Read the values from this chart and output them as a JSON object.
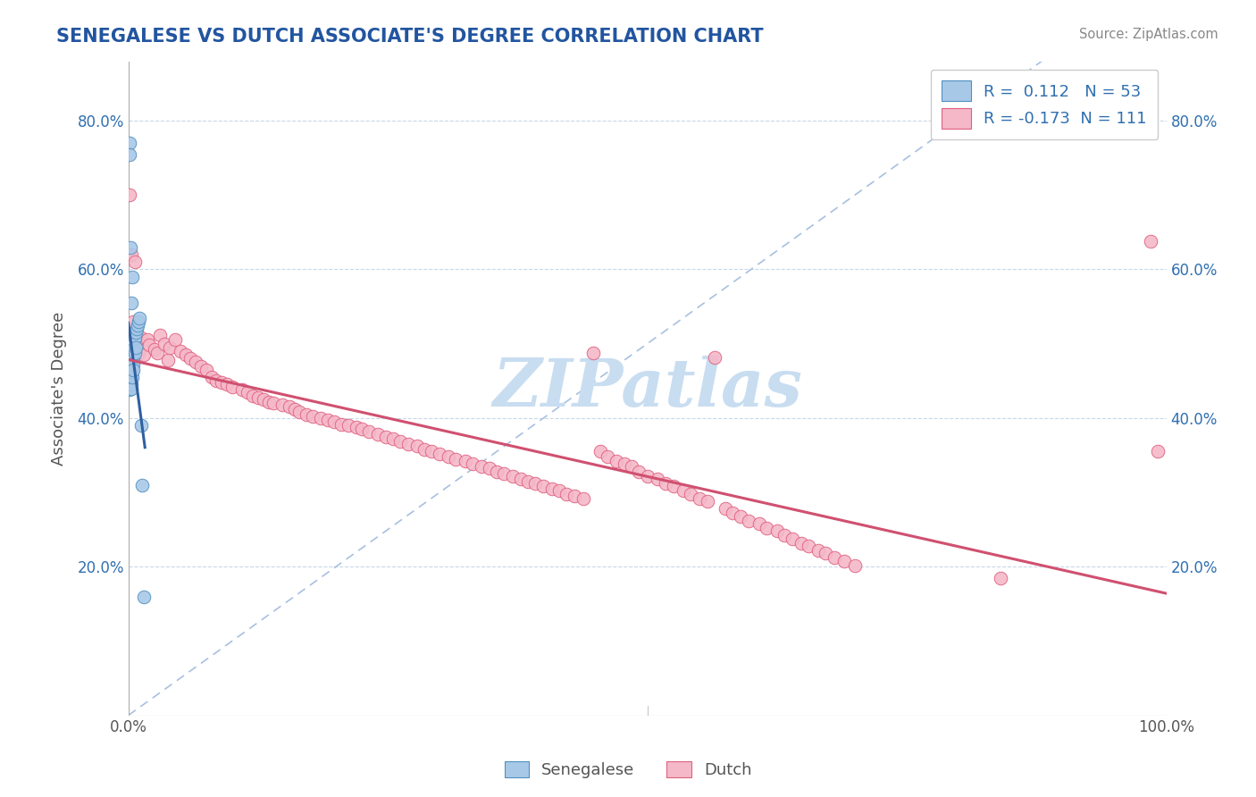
{
  "title": "SENEGALESE VS DUTCH ASSOCIATE'S DEGREE CORRELATION CHART",
  "source_text": "Source: ZipAtlas.com",
  "ylabel": "Associate's Degree",
  "watermark": "ZIPatlas",
  "xlim": [
    0.0,
    1.0
  ],
  "ylim": [
    0.0,
    0.88
  ],
  "blue_R": 0.112,
  "blue_N": 53,
  "pink_R": -0.173,
  "pink_N": 111,
  "blue_color": "#a8c8e8",
  "pink_color": "#f4b8c8",
  "blue_edge_color": "#5090c0",
  "pink_edge_color": "#e06080",
  "blue_line_color": "#3060a0",
  "pink_line_color": "#d05070",
  "dashed_line_color": "#a8c0e0",
  "legend_text_color": "#3070b0",
  "title_color": "#2255a0",
  "source_color": "#888888",
  "watermark_color": "#c8ddf0",
  "background_color": "#ffffff",
  "blue_x": [
    0.001,
    0.001,
    0.001,
    0.001,
    0.001,
    0.001,
    0.001,
    0.001,
    0.001,
    0.001,
    0.002,
    0.002,
    0.002,
    0.002,
    0.002,
    0.002,
    0.002,
    0.002,
    0.002,
    0.002,
    0.003,
    0.003,
    0.003,
    0.003,
    0.003,
    0.003,
    0.003,
    0.003,
    0.003,
    0.003,
    0.004,
    0.004,
    0.004,
    0.004,
    0.004,
    0.004,
    0.004,
    0.005,
    0.005,
    0.005,
    0.005,
    0.005,
    0.006,
    0.006,
    0.007,
    0.007,
    0.008,
    0.009,
    0.01,
    0.011,
    0.012,
    0.013,
    0.015
  ],
  "blue_y": [
    0.77,
    0.755,
    0.49,
    0.478,
    0.47,
    0.462,
    0.455,
    0.448,
    0.442,
    0.438,
    0.63,
    0.51,
    0.5,
    0.488,
    0.48,
    0.472,
    0.465,
    0.458,
    0.45,
    0.445,
    0.555,
    0.505,
    0.495,
    0.485,
    0.475,
    0.468,
    0.46,
    0.452,
    0.445,
    0.44,
    0.59,
    0.498,
    0.488,
    0.478,
    0.47,
    0.462,
    0.455,
    0.502,
    0.492,
    0.482,
    0.472,
    0.465,
    0.508,
    0.488,
    0.515,
    0.495,
    0.52,
    0.525,
    0.53,
    0.535,
    0.39,
    0.31,
    0.16
  ],
  "pink_x": [
    0.001,
    0.003,
    0.005,
    0.006,
    0.008,
    0.01,
    0.012,
    0.015,
    0.018,
    0.02,
    0.025,
    0.028,
    0.03,
    0.035,
    0.038,
    0.04,
    0.045,
    0.05,
    0.055,
    0.06,
    0.065,
    0.07,
    0.075,
    0.08,
    0.085,
    0.09,
    0.095,
    0.1,
    0.11,
    0.115,
    0.12,
    0.125,
    0.13,
    0.135,
    0.14,
    0.148,
    0.155,
    0.16,
    0.165,
    0.172,
    0.178,
    0.185,
    0.192,
    0.198,
    0.205,
    0.212,
    0.22,
    0.225,
    0.232,
    0.24,
    0.248,
    0.255,
    0.262,
    0.27,
    0.278,
    0.285,
    0.292,
    0.3,
    0.308,
    0.315,
    0.325,
    0.332,
    0.34,
    0.348,
    0.355,
    0.362,
    0.37,
    0.378,
    0.385,
    0.392,
    0.4,
    0.408,
    0.415,
    0.422,
    0.43,
    0.438,
    0.448,
    0.455,
    0.462,
    0.47,
    0.478,
    0.485,
    0.492,
    0.5,
    0.51,
    0.518,
    0.525,
    0.535,
    0.542,
    0.55,
    0.558,
    0.565,
    0.575,
    0.582,
    0.59,
    0.598,
    0.608,
    0.615,
    0.625,
    0.632,
    0.64,
    0.648,
    0.655,
    0.665,
    0.672,
    0.68,
    0.69,
    0.7,
    0.84,
    0.985,
    0.992
  ],
  "pink_y": [
    0.7,
    0.62,
    0.53,
    0.61,
    0.51,
    0.488,
    0.508,
    0.485,
    0.505,
    0.498,
    0.492,
    0.488,
    0.512,
    0.5,
    0.478,
    0.495,
    0.505,
    0.49,
    0.485,
    0.48,
    0.475,
    0.47,
    0.465,
    0.455,
    0.45,
    0.448,
    0.445,
    0.442,
    0.438,
    0.435,
    0.43,
    0.428,
    0.425,
    0.422,
    0.42,
    0.418,
    0.415,
    0.412,
    0.408,
    0.405,
    0.402,
    0.4,
    0.398,
    0.395,
    0.392,
    0.39,
    0.388,
    0.385,
    0.382,
    0.378,
    0.375,
    0.372,
    0.368,
    0.365,
    0.362,
    0.358,
    0.355,
    0.352,
    0.348,
    0.345,
    0.342,
    0.338,
    0.335,
    0.332,
    0.328,
    0.325,
    0.322,
    0.318,
    0.315,
    0.312,
    0.308,
    0.305,
    0.302,
    0.298,
    0.295,
    0.292,
    0.488,
    0.355,
    0.348,
    0.342,
    0.338,
    0.335,
    0.328,
    0.322,
    0.318,
    0.312,
    0.308,
    0.302,
    0.298,
    0.292,
    0.288,
    0.482,
    0.278,
    0.272,
    0.268,
    0.262,
    0.258,
    0.252,
    0.248,
    0.242,
    0.238,
    0.232,
    0.228,
    0.222,
    0.218,
    0.212,
    0.208,
    0.202,
    0.185,
    0.638,
    0.355
  ]
}
